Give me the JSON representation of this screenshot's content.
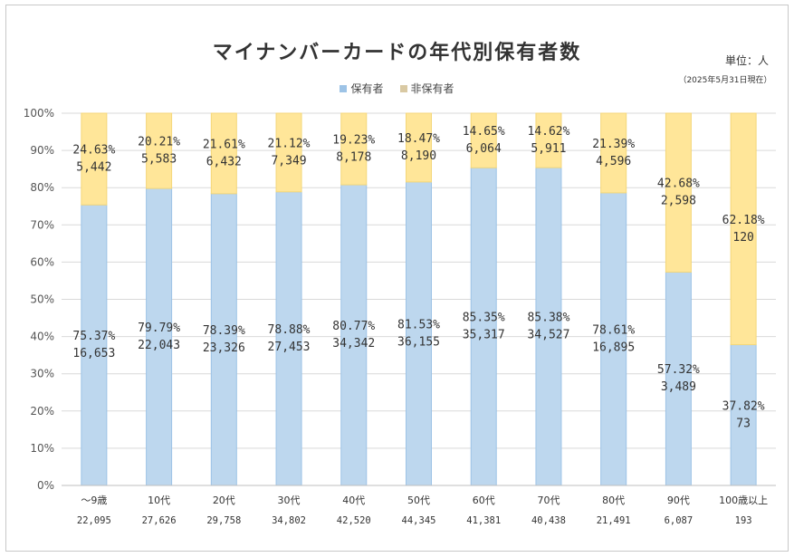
{
  "chart_data": {
    "type": "bar",
    "stacked": true,
    "percent": true,
    "title": "マイナンバーカードの年代別保有者数",
    "unit": "単位：人",
    "as_of": "（2025年5月31日現在）",
    "legend_position": "top",
    "grid": true,
    "ylim": [
      0,
      100
    ],
    "y_ticks": [
      "0%",
      "10%",
      "20%",
      "30%",
      "40%",
      "50%",
      "60%",
      "70%",
      "80%",
      "90%",
      "100%"
    ],
    "categories": [
      "～9歳",
      "10代",
      "20代",
      "30代",
      "40代",
      "50代",
      "60代",
      "70代",
      "80代",
      "90代",
      "100歳以上"
    ],
    "totals": [
      "22,095",
      "27,626",
      "29,758",
      "34,802",
      "42,520",
      "44,345",
      "41,381",
      "40,438",
      "21,491",
      "6,087",
      "193"
    ],
    "series": [
      {
        "name": "保有者",
        "color": "#bdd7ee",
        "percent": [
          75.37,
          79.79,
          78.39,
          78.88,
          80.77,
          81.53,
          85.35,
          85.38,
          78.61,
          57.32,
          37.82
        ],
        "percent_labels": [
          "75.37%",
          "79.79%",
          "78.39%",
          "78.88%",
          "80.77%",
          "81.53%",
          "85.35%",
          "85.38%",
          "78.61%",
          "57.32%",
          "37.82%"
        ],
        "count_labels": [
          "16,653",
          "22,043",
          "23,326",
          "27,453",
          "34,342",
          "36,155",
          "35,317",
          "34,527",
          "16,895",
          "3,489",
          "73"
        ]
      },
      {
        "name": "非保有者",
        "color": "#ffe699",
        "percent": [
          24.63,
          20.21,
          21.61,
          21.12,
          19.23,
          18.47,
          14.65,
          14.62,
          21.39,
          42.68,
          62.18
        ],
        "percent_labels": [
          "24.63%",
          "20.21%",
          "21.61%",
          "21.12%",
          "19.23%",
          "18.47%",
          "14.65%",
          "14.62%",
          "21.39%",
          "42.68%",
          "62.18%"
        ],
        "count_labels": [
          "5,442",
          "5,583",
          "6,432",
          "7,349",
          "8,178",
          "8,190",
          "6,064",
          "5,911",
          "4,596",
          "2,598",
          "120"
        ]
      }
    ]
  },
  "legend": {
    "holder": "保有者",
    "nonholder": "非保有者",
    "holder_color": "#9dc3e6",
    "nonholder_color": "#d9c9a3"
  }
}
